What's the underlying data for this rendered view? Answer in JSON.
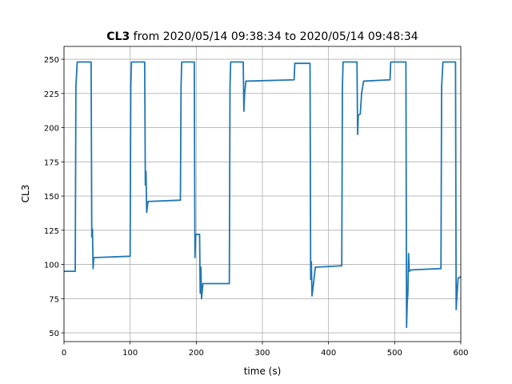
{
  "chart_data": {
    "type": "line",
    "title_parts": [
      "CL3",
      "from 2020/05/14 09:38:34 to 2020/05/14 09:48:34"
    ],
    "x_label": "time (s)",
    "y_label": "CL3",
    "x": [
      0,
      17,
      18,
      20,
      41,
      42,
      43,
      44,
      45,
      100,
      101,
      102,
      122,
      123,
      124,
      125,
      127,
      176,
      177,
      178,
      197,
      198,
      199,
      205,
      206,
      207,
      208,
      210,
      250,
      251,
      252,
      271,
      272,
      273,
      275,
      348,
      349,
      372,
      373,
      374,
      375,
      377,
      380,
      420,
      421,
      422,
      443,
      444,
      445,
      448,
      450,
      453,
      493,
      494,
      517,
      518,
      519,
      520,
      521,
      522,
      525,
      570,
      571,
      573,
      592,
      593,
      594,
      596,
      600
    ],
    "values": [
      95,
      95,
      230,
      248,
      248,
      120,
      126,
      97,
      105,
      106,
      230,
      248,
      248,
      158,
      168,
      138,
      146,
      147,
      230,
      248,
      248,
      105,
      122,
      122,
      79,
      98,
      75,
      86,
      86,
      230,
      248,
      248,
      212,
      224,
      234,
      235,
      247,
      247,
      89,
      102,
      77,
      85,
      98,
      99,
      230,
      248,
      248,
      195,
      209,
      210,
      225,
      234,
      235,
      248,
      248,
      54,
      72,
      79,
      108,
      95,
      96,
      97,
      230,
      248,
      248,
      67,
      76,
      90,
      91
    ],
    "color": "#1f77b4",
    "xlim": [
      0,
      600
    ],
    "ylim": [
      43.6,
      259.4
    ],
    "xticks": [
      0,
      100,
      200,
      300,
      400,
      500,
      600
    ],
    "yticks": [
      50,
      75,
      100,
      125,
      150,
      175,
      200,
      225,
      250
    ],
    "grid": true
  }
}
